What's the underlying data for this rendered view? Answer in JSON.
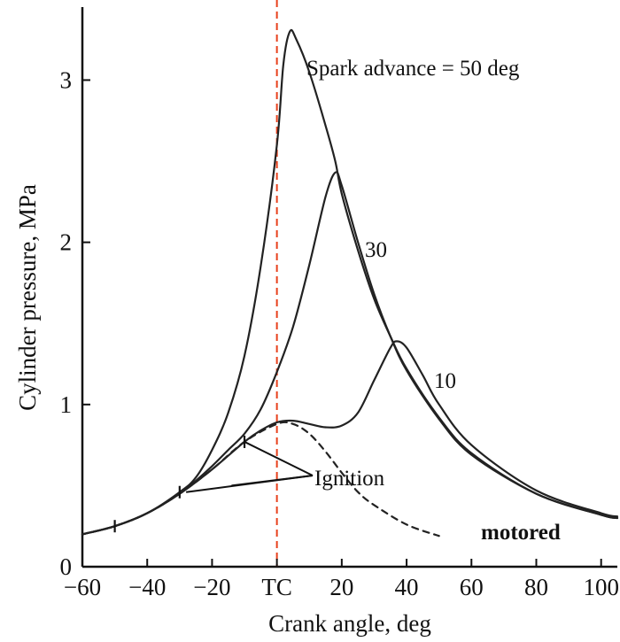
{
  "chart_data": {
    "type": "line",
    "xlabel": "Crank angle, deg",
    "ylabel": "Cylinder pressure, MPa",
    "xlim": [
      -60,
      105
    ],
    "ylim": [
      0,
      3.45
    ],
    "x_ticks": [
      {
        "value": -60,
        "label": "−60"
      },
      {
        "value": -40,
        "label": "−40"
      },
      {
        "value": -20,
        "label": "−20"
      },
      {
        "value": 0,
        "label": "TC"
      },
      {
        "value": 20,
        "label": "20"
      },
      {
        "value": 40,
        "label": "40"
      },
      {
        "value": 60,
        "label": "60"
      },
      {
        "value": 80,
        "label": "80"
      },
      {
        "value": 100,
        "label": "100"
      }
    ],
    "y_ticks": [
      {
        "value": 0,
        "label": "0"
      },
      {
        "value": 1,
        "label": "1"
      },
      {
        "value": 2,
        "label": "2"
      },
      {
        "value": 3,
        "label": "3"
      }
    ],
    "grid": false,
    "reference_line": {
      "x": 0,
      "color": "#e8401c",
      "style": "dashed"
    },
    "series": [
      {
        "name": "motored",
        "style": "dashed",
        "x": [
          -60,
          -50,
          -40,
          -30,
          -20,
          -10,
          0,
          5,
          10,
          15,
          20,
          25,
          30,
          40,
          50
        ],
        "y": [
          0.2,
          0.25,
          0.33,
          0.45,
          0.6,
          0.77,
          0.88,
          0.88,
          0.82,
          0.71,
          0.58,
          0.46,
          0.38,
          0.26,
          0.19
        ]
      },
      {
        "name": "50 deg",
        "x": [
          -60,
          -50,
          -40,
          -30,
          -25,
          -20,
          -15,
          -10,
          -5,
          0,
          2,
          4,
          6,
          10,
          15,
          18,
          20,
          25,
          30,
          35,
          40,
          50,
          60,
          80,
          100,
          105
        ],
        "y": [
          0.2,
          0.25,
          0.33,
          0.46,
          0.55,
          0.72,
          0.95,
          1.3,
          1.85,
          2.6,
          3.1,
          3.3,
          3.25,
          3.05,
          2.72,
          2.5,
          2.3,
          1.95,
          1.65,
          1.42,
          1.22,
          0.92,
          0.7,
          0.45,
          0.32,
          0.3
        ]
      },
      {
        "name": "30 deg",
        "x": [
          -60,
          -50,
          -40,
          -30,
          -25,
          -20,
          -15,
          -10,
          -5,
          0,
          5,
          10,
          15,
          18,
          20,
          25,
          30,
          35,
          40,
          50,
          60,
          80,
          100,
          105
        ],
        "y": [
          0.2,
          0.25,
          0.33,
          0.45,
          0.53,
          0.62,
          0.72,
          0.82,
          0.97,
          1.2,
          1.48,
          1.86,
          2.28,
          2.43,
          2.35,
          2.0,
          1.68,
          1.42,
          1.21,
          0.91,
          0.69,
          0.45,
          0.32,
          0.3
        ]
      },
      {
        "name": "10 deg",
        "x": [
          -60,
          -50,
          -40,
          -30,
          -20,
          -10,
          -5,
          0,
          5,
          10,
          15,
          20,
          25,
          30,
          35,
          37,
          40,
          45,
          50,
          60,
          80,
          100,
          105
        ],
        "y": [
          0.2,
          0.25,
          0.33,
          0.45,
          0.6,
          0.77,
          0.84,
          0.89,
          0.9,
          0.88,
          0.86,
          0.87,
          0.95,
          1.15,
          1.35,
          1.39,
          1.35,
          1.18,
          1.0,
          0.75,
          0.47,
          0.33,
          0.31
        ]
      }
    ],
    "ignition_marks": [
      {
        "x": -50,
        "y": 0.25
      },
      {
        "x": -30,
        "y": 0.46
      },
      {
        "x": -10,
        "y": 0.77
      }
    ],
    "annotations": {
      "spark_advance": "Spark advance = 50 deg",
      "label_30": "30",
      "label_10": "10",
      "ignition": "Ignition",
      "motored": "motored"
    }
  }
}
